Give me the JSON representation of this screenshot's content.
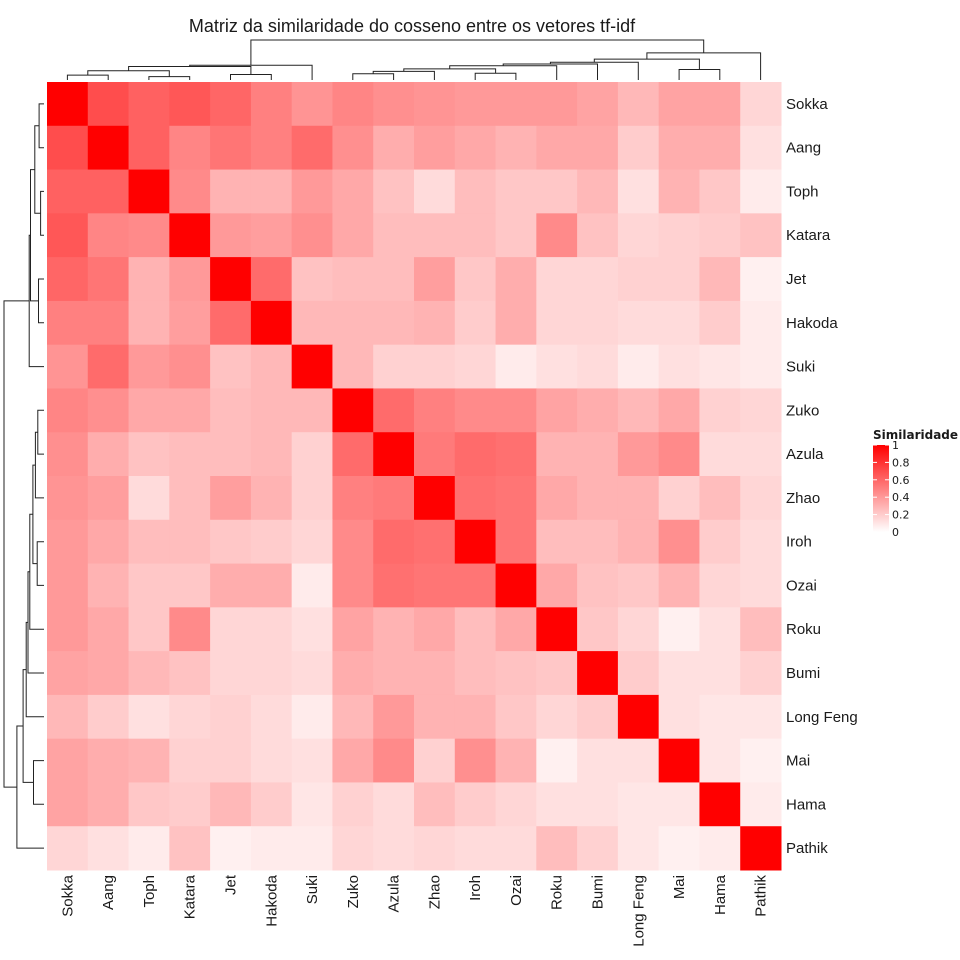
{
  "chart_data": {
    "type": "heatmap",
    "title": "Matriz da similaridade do cosseno entre os vetores tf-idf",
    "labels": [
      "Sokka",
      "Aang",
      "Toph",
      "Katara",
      "Jet",
      "Hakoda",
      "Suki",
      "Zuko",
      "Azula",
      "Zhao",
      "Iroh",
      "Ozai",
      "Roku",
      "Bumi",
      "Long Feng",
      "Mai",
      "Hama",
      "Pathik"
    ],
    "matrix": [
      [
        1.0,
        0.7,
        0.62,
        0.66,
        0.6,
        0.5,
        0.42,
        0.48,
        0.44,
        0.42,
        0.4,
        0.4,
        0.4,
        0.36,
        0.28,
        0.36,
        0.36,
        0.16
      ],
      [
        0.7,
        1.0,
        0.62,
        0.48,
        0.54,
        0.5,
        0.58,
        0.44,
        0.32,
        0.38,
        0.34,
        0.3,
        0.34,
        0.34,
        0.2,
        0.32,
        0.32,
        0.12
      ],
      [
        0.62,
        0.62,
        1.0,
        0.46,
        0.3,
        0.3,
        0.4,
        0.34,
        0.24,
        0.14,
        0.26,
        0.22,
        0.22,
        0.28,
        0.12,
        0.3,
        0.22,
        0.08
      ],
      [
        0.66,
        0.48,
        0.46,
        1.0,
        0.4,
        0.38,
        0.44,
        0.34,
        0.26,
        0.26,
        0.26,
        0.22,
        0.46,
        0.24,
        0.16,
        0.18,
        0.2,
        0.24
      ],
      [
        0.6,
        0.54,
        0.3,
        0.4,
        1.0,
        0.58,
        0.24,
        0.26,
        0.26,
        0.38,
        0.22,
        0.32,
        0.16,
        0.16,
        0.18,
        0.18,
        0.28,
        0.06
      ],
      [
        0.5,
        0.5,
        0.3,
        0.38,
        0.58,
        1.0,
        0.28,
        0.28,
        0.28,
        0.3,
        0.2,
        0.32,
        0.16,
        0.16,
        0.14,
        0.14,
        0.2,
        0.08
      ],
      [
        0.42,
        0.58,
        0.4,
        0.44,
        0.24,
        0.28,
        1.0,
        0.28,
        0.18,
        0.18,
        0.16,
        0.08,
        0.12,
        0.14,
        0.08,
        0.12,
        0.1,
        0.08
      ],
      [
        0.48,
        0.44,
        0.34,
        0.34,
        0.26,
        0.28,
        0.28,
        1.0,
        0.58,
        0.5,
        0.46,
        0.46,
        0.36,
        0.32,
        0.28,
        0.34,
        0.18,
        0.16
      ],
      [
        0.44,
        0.32,
        0.24,
        0.26,
        0.26,
        0.28,
        0.18,
        0.58,
        1.0,
        0.52,
        0.58,
        0.56,
        0.3,
        0.3,
        0.4,
        0.46,
        0.14,
        0.14
      ],
      [
        0.42,
        0.38,
        0.14,
        0.26,
        0.38,
        0.3,
        0.18,
        0.5,
        0.52,
        1.0,
        0.56,
        0.54,
        0.34,
        0.3,
        0.3,
        0.18,
        0.26,
        0.16
      ],
      [
        0.4,
        0.34,
        0.26,
        0.26,
        0.22,
        0.2,
        0.16,
        0.46,
        0.58,
        0.56,
        1.0,
        0.54,
        0.26,
        0.26,
        0.3,
        0.44,
        0.2,
        0.14
      ],
      [
        0.4,
        0.3,
        0.22,
        0.22,
        0.32,
        0.32,
        0.08,
        0.46,
        0.56,
        0.54,
        0.54,
        1.0,
        0.34,
        0.24,
        0.22,
        0.3,
        0.16,
        0.14
      ],
      [
        0.4,
        0.34,
        0.22,
        0.46,
        0.16,
        0.16,
        0.12,
        0.36,
        0.3,
        0.34,
        0.26,
        0.34,
        1.0,
        0.22,
        0.16,
        0.06,
        0.12,
        0.26
      ],
      [
        0.36,
        0.34,
        0.28,
        0.24,
        0.16,
        0.16,
        0.14,
        0.32,
        0.3,
        0.3,
        0.26,
        0.24,
        0.22,
        1.0,
        0.2,
        0.12,
        0.12,
        0.18
      ],
      [
        0.28,
        0.2,
        0.12,
        0.16,
        0.18,
        0.14,
        0.08,
        0.28,
        0.4,
        0.3,
        0.3,
        0.22,
        0.16,
        0.2,
        1.0,
        0.12,
        0.1,
        0.1
      ],
      [
        0.36,
        0.32,
        0.3,
        0.18,
        0.18,
        0.14,
        0.12,
        0.34,
        0.46,
        0.18,
        0.44,
        0.3,
        0.06,
        0.12,
        0.12,
        1.0,
        0.1,
        0.06
      ],
      [
        0.36,
        0.32,
        0.22,
        0.2,
        0.28,
        0.2,
        0.1,
        0.18,
        0.14,
        0.26,
        0.2,
        0.16,
        0.12,
        0.12,
        0.1,
        0.1,
        1.0,
        0.08
      ],
      [
        0.16,
        0.12,
        0.08,
        0.24,
        0.06,
        0.08,
        0.08,
        0.16,
        0.14,
        0.16,
        0.14,
        0.14,
        0.26,
        0.18,
        0.1,
        0.06,
        0.08,
        1.0
      ]
    ],
    "color_low": "#ffffff",
    "color_high": "#ff0000",
    "legend": {
      "title": "Similaridade",
      "ticks": [
        "1",
        "0.8",
        "0.6",
        "0.4",
        "0.2",
        "0"
      ],
      "placement": "right"
    },
    "dendrogram": "rows-left and columns-top"
  }
}
